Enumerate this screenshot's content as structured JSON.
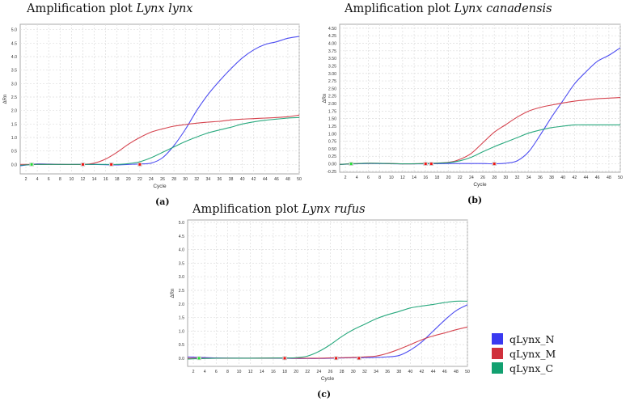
{
  "colors": {
    "qLynx_N": "#3a3af0",
    "qLynx_M": "#d0303c",
    "qLynx_C": "#12a070",
    "grid": "#dddddd",
    "axis": "#aaaaaa"
  },
  "legend": [
    {
      "label": "qLynx_N",
      "color": "#3a3af0"
    },
    {
      "label": "qLynx_M",
      "color": "#d0303c"
    },
    {
      "label": "qLynx_C",
      "color": "#12a070"
    }
  ],
  "chart_data": [
    {
      "type": "line",
      "title_prefix": "Amplification plot ",
      "title_species": "Lynx lynx",
      "panel": "(a)",
      "xlabel": "Cycle",
      "ylabel": "ΔRn",
      "xlim": [
        1,
        50
      ],
      "ylim": [
        -0.35,
        5.2
      ],
      "xticks": [
        "2",
        "4",
        "6",
        "8",
        "10",
        "12",
        "14",
        "16",
        "18",
        "20",
        "22",
        "24",
        "26",
        "28",
        "30",
        "32",
        "34",
        "36",
        "38",
        "40",
        "42",
        "44",
        "46",
        "48",
        "50"
      ],
      "yticks": [
        "0.0",
        "0.5",
        "1.0",
        "1.5",
        "2.0",
        "2.5",
        "3.0",
        "3.5",
        "4.0",
        "4.5",
        "5.0"
      ],
      "x": [
        1,
        4,
        8,
        12,
        14,
        16,
        18,
        20,
        22,
        24,
        26,
        28,
        30,
        32,
        34,
        36,
        38,
        40,
        42,
        44,
        46,
        48,
        50
      ],
      "series": [
        {
          "name": "qLynx_N",
          "values": [
            -0.05,
            0.02,
            0,
            0,
            0,
            -0.01,
            -0.02,
            0,
            0.02,
            0.05,
            0.25,
            0.7,
            1.3,
            2.0,
            2.6,
            3.1,
            3.55,
            3.95,
            4.25,
            4.45,
            4.55,
            4.68,
            4.75
          ]
        },
        {
          "name": "qLynx_M",
          "values": [
            0,
            0,
            0,
            0,
            0.05,
            0.2,
            0.45,
            0.75,
            1.0,
            1.2,
            1.32,
            1.42,
            1.48,
            1.53,
            1.57,
            1.6,
            1.65,
            1.68,
            1.7,
            1.72,
            1.74,
            1.77,
            1.83
          ]
        },
        {
          "name": "qLynx_C",
          "values": [
            -0.03,
            0,
            0,
            0,
            0,
            0,
            0,
            0.03,
            0.1,
            0.25,
            0.45,
            0.65,
            0.85,
            1.02,
            1.17,
            1.28,
            1.38,
            1.5,
            1.58,
            1.64,
            1.68,
            1.72,
            1.74
          ]
        }
      ],
      "markers": [
        {
          "x": 3,
          "color": "green"
        },
        {
          "x": 12,
          "color": "red"
        },
        {
          "x": 17,
          "color": "red"
        },
        {
          "x": 22,
          "color": "red"
        }
      ]
    },
    {
      "type": "line",
      "title_prefix": "Amplification plot ",
      "title_species": "Lynx canadensis",
      "panel": "(b)",
      "xlabel": "Cycle",
      "ylabel": "ΔRn",
      "xlim": [
        1,
        50
      ],
      "ylim": [
        -0.28,
        4.63
      ],
      "xticks": [
        "2",
        "4",
        "6",
        "8",
        "10",
        "12",
        "14",
        "16",
        "18",
        "20",
        "22",
        "24",
        "26",
        "28",
        "30",
        "32",
        "34",
        "36",
        "38",
        "40",
        "42",
        "44",
        "46",
        "48",
        "50"
      ],
      "yticks": [
        "-0.25",
        "0.00",
        "0.25",
        "0.50",
        "0.75",
        "1.00",
        "1.25",
        "1.50",
        "1.75",
        "2.00",
        "2.25",
        "2.50",
        "2.75",
        "3.00",
        "3.25",
        "3.50",
        "3.75",
        "4.00",
        "4.25",
        "4.50"
      ],
      "x": [
        1,
        6,
        12,
        16,
        20,
        22,
        24,
        26,
        28,
        30,
        32,
        34,
        36,
        38,
        40,
        42,
        44,
        46,
        48,
        50
      ],
      "series": [
        {
          "name": "qLynx_N",
          "values": [
            -0.02,
            0.01,
            0,
            0,
            0.01,
            0.01,
            0.01,
            0.01,
            0,
            0.02,
            0.1,
            0.4,
            0.95,
            1.55,
            2.1,
            2.65,
            3.05,
            3.4,
            3.6,
            3.85
          ]
        },
        {
          "name": "qLynx_M",
          "values": [
            -0.02,
            0.02,
            0,
            0.01,
            0.05,
            0.15,
            0.35,
            0.7,
            1.05,
            1.3,
            1.55,
            1.75,
            1.87,
            1.95,
            2.02,
            2.08,
            2.12,
            2.16,
            2.18,
            2.2
          ]
        },
        {
          "name": "qLynx_C",
          "values": [
            -0.02,
            0.02,
            0,
            0.01,
            0.04,
            0.1,
            0.22,
            0.4,
            0.57,
            0.72,
            0.87,
            1.02,
            1.12,
            1.2,
            1.25,
            1.29,
            1.29,
            1.29,
            1.29,
            1.29
          ]
        }
      ],
      "markers": [
        {
          "x": 3,
          "color": "green"
        },
        {
          "x": 16,
          "color": "red"
        },
        {
          "x": 17,
          "color": "red"
        },
        {
          "x": 28,
          "color": "red"
        }
      ]
    },
    {
      "type": "line",
      "title_prefix": "Amplification plot ",
      "title_species": "Lynx rufus",
      "panel": "(c)",
      "xlabel": "Cycle",
      "ylabel": "ΔRn",
      "xlim": [
        1,
        50
      ],
      "ylim": [
        -0.3,
        5.09
      ],
      "xticks": [
        "2",
        "4",
        "6",
        "8",
        "10",
        "12",
        "14",
        "16",
        "18",
        "20",
        "22",
        "24",
        "26",
        "28",
        "30",
        "32",
        "34",
        "36",
        "38",
        "40",
        "42",
        "44",
        "46",
        "48",
        "50"
      ],
      "yticks": [
        "0.0",
        "0.5",
        "1.0",
        "1.5",
        "2.0",
        "2.5",
        "3.0",
        "3.5",
        "4.0",
        "4.5",
        "5.0"
      ],
      "x": [
        1,
        6,
        12,
        18,
        20,
        22,
        24,
        26,
        28,
        30,
        32,
        34,
        36,
        38,
        40,
        42,
        44,
        46,
        48,
        50
      ],
      "series": [
        {
          "name": "qLynx_N",
          "values": [
            0.05,
            0.01,
            0,
            0,
            -0.01,
            -0.01,
            -0.01,
            0,
            0.01,
            0.02,
            0.02,
            0.03,
            0.05,
            0.1,
            0.3,
            0.6,
            1.0,
            1.4,
            1.75,
            1.97
          ]
        },
        {
          "name": "qLynx_M",
          "values": [
            0,
            0,
            0,
            0.01,
            0,
            0,
            0,
            0.01,
            0.02,
            0.03,
            0.05,
            0.08,
            0.18,
            0.33,
            0.5,
            0.68,
            0.82,
            0.93,
            1.05,
            1.15
          ]
        },
        {
          "name": "qLynx_C",
          "values": [
            -0.03,
            0,
            0,
            0.01,
            0.02,
            0.08,
            0.25,
            0.5,
            0.8,
            1.05,
            1.25,
            1.45,
            1.6,
            1.72,
            1.85,
            1.92,
            1.98,
            2.05,
            2.1,
            2.1
          ]
        }
      ],
      "markers": [
        {
          "x": 3,
          "color": "green"
        },
        {
          "x": 18,
          "color": "red"
        },
        {
          "x": 27,
          "color": "red"
        },
        {
          "x": 31,
          "color": "red"
        }
      ]
    }
  ]
}
